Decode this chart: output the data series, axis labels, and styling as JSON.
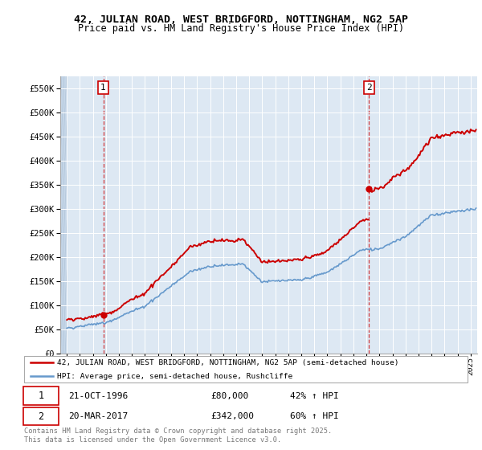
{
  "title_line1": "42, JULIAN ROAD, WEST BRIDGFORD, NOTTINGHAM, NG2 5AP",
  "title_line2": "Price paid vs. HM Land Registry's House Price Index (HPI)",
  "legend_line1": "42, JULIAN ROAD, WEST BRIDGFORD, NOTTINGHAM, NG2 5AP (semi-detached house)",
  "legend_line2": "HPI: Average price, semi-detached house, Rushcliffe",
  "annotation1_date": "21-OCT-1996",
  "annotation1_price": "£80,000",
  "annotation1_hpi": "42% ↑ HPI",
  "annotation2_date": "20-MAR-2017",
  "annotation2_price": "£342,000",
  "annotation2_hpi": "60% ↑ HPI",
  "footer": "Contains HM Land Registry data © Crown copyright and database right 2025.\nThis data is licensed under the Open Government Licence v3.0.",
  "sale1_year": 1996.8,
  "sale1_value": 80000,
  "sale2_year": 2017.2,
  "sale2_value": 342000,
  "red_color": "#cc0000",
  "blue_color": "#6699cc",
  "bg_plot": "#dde8f3",
  "bg_hatch": "#c5d6e8",
  "ylim_max": 575000,
  "ylim_min": 0,
  "xlim_min": 1993.5,
  "xlim_max": 2025.5
}
